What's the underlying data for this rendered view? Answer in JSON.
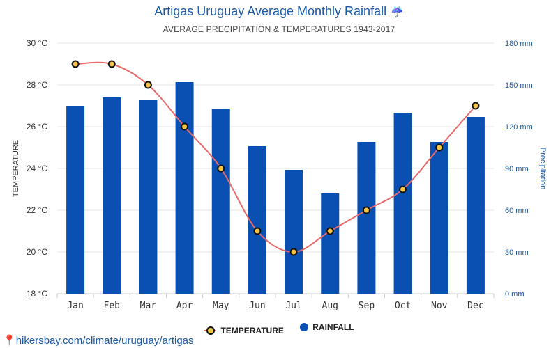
{
  "header": {
    "title": "Artigas Uruguay Average Monthly Rainfall",
    "title_icon": "umbrella-icon",
    "subtitle": "AVERAGE PRECIPITATION & TEMPERATURES 1943-2017"
  },
  "legend": {
    "temperature": "TEMPERATURE",
    "rainfall": "RAINFALL"
  },
  "footer": {
    "link_text": "hikersbay.com/climate/uruguay/artigas",
    "icon": "pin-icon"
  },
  "colors": {
    "bar": "#0a4fb2",
    "line": "#e86a6a",
    "marker_fill": "#f5c445",
    "marker_stroke": "#111111",
    "right_axis": "#1a5aa8",
    "grid": "#e6e6e6"
  },
  "chart_data": {
    "type": "bar",
    "categories": [
      "Jan",
      "Feb",
      "Mar",
      "Apr",
      "May",
      "Jun",
      "Jul",
      "Aug",
      "Sep",
      "Oct",
      "Nov",
      "Dec"
    ],
    "series": [
      {
        "name": "RAINFALL",
        "type": "bar",
        "axis": "right",
        "unit": "mm",
        "values": [
          135,
          141,
          139,
          152,
          133,
          106,
          89,
          72,
          109,
          130,
          109,
          127
        ]
      },
      {
        "name": "TEMPERATURE",
        "type": "line",
        "axis": "left",
        "unit": "°C",
        "values": [
          29,
          29,
          28,
          26,
          24,
          21,
          20,
          21,
          22,
          23,
          25,
          27
        ]
      }
    ],
    "y_left": {
      "label": "TEMPERATURE",
      "ticks": [
        "18 °C",
        "20 °C",
        "22 °C",
        "24 °C",
        "26 °C",
        "28 °C",
        "30 °C"
      ],
      "range": [
        18,
        30
      ]
    },
    "y_right": {
      "label": "Precipitation",
      "ticks": [
        "0 mm",
        "30 mm",
        "60 mm",
        "90 mm",
        "120 mm",
        "150 mm",
        "180 mm"
      ],
      "range": [
        0,
        180
      ]
    },
    "grid": true,
    "legend_position": "bottom-center"
  }
}
